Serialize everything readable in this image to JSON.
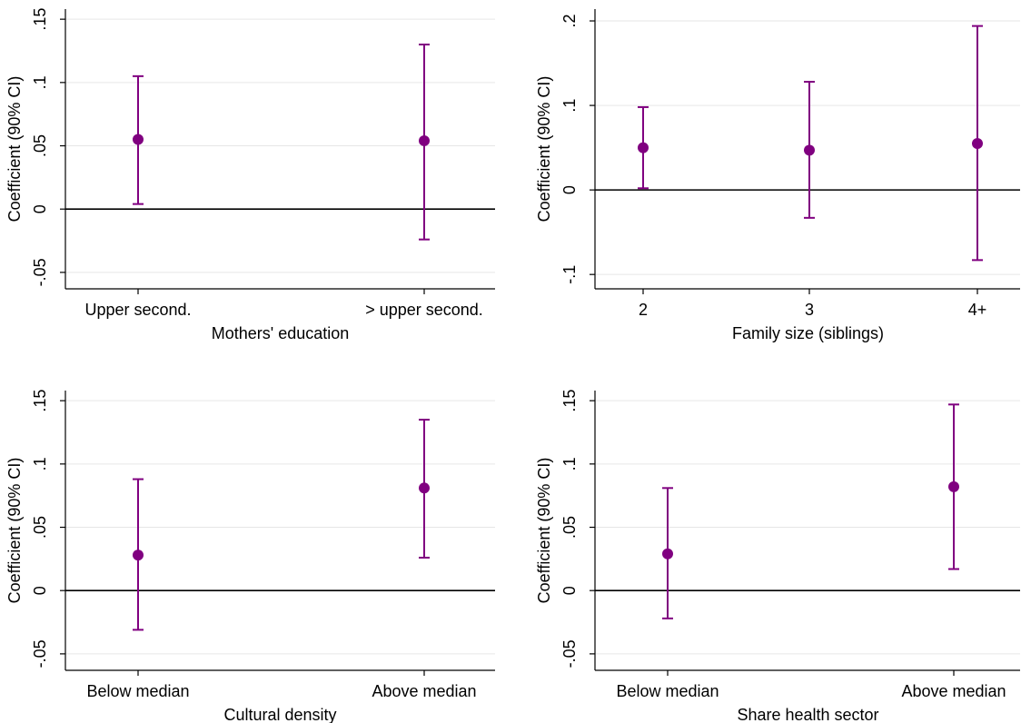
{
  "colors": {
    "marker": "#800080",
    "grid": "#e6e6e6",
    "axis": "#000000",
    "zero_line": "#000000"
  },
  "chart_data": [
    {
      "type": "scatter",
      "subtype": "coefficient plot with error bars",
      "ylabel": "Coefficient (90% CI)",
      "xlabel": "Mothers' education",
      "categories": [
        "Upper second.",
        "> upper second."
      ],
      "coef": [
        0.055,
        0.054
      ],
      "ci_low": [
        0.004,
        -0.024
      ],
      "ci_high": [
        0.105,
        0.13
      ],
      "yticks": [
        -0.05,
        0,
        0.05,
        0.1,
        0.15
      ],
      "ytick_labels": [
        "-.05",
        "0",
        ".05",
        ".1",
        ".15"
      ],
      "ylim": [
        -0.063,
        0.158
      ],
      "zero_line": true,
      "grid": true
    },
    {
      "type": "scatter",
      "subtype": "coefficient plot with error bars",
      "ylabel": "Coefficient (90% CI)",
      "xlabel": "Family size (siblings)",
      "categories": [
        "2",
        "3",
        "4+"
      ],
      "coef": [
        0.05,
        0.047,
        0.055
      ],
      "ci_low": [
        0.002,
        -0.033,
        -0.083
      ],
      "ci_high": [
        0.098,
        0.128,
        0.194
      ],
      "yticks": [
        -0.1,
        0,
        0.1,
        0.2
      ],
      "ytick_labels": [
        "-.1",
        "0",
        ".1",
        ".2"
      ],
      "ylim": [
        -0.117,
        0.214
      ],
      "zero_line": true,
      "grid": true
    },
    {
      "type": "scatter",
      "subtype": "coefficient plot with error bars",
      "ylabel": "Coefficient (90% CI)",
      "xlabel": "Cultural density",
      "categories": [
        "Below median",
        "Above median"
      ],
      "coef": [
        0.028,
        0.081
      ],
      "ci_low": [
        -0.031,
        0.026
      ],
      "ci_high": [
        0.088,
        0.135
      ],
      "yticks": [
        -0.05,
        0,
        0.05,
        0.1,
        0.15
      ],
      "ytick_labels": [
        "-.05",
        "0",
        ".05",
        ".1",
        ".15"
      ],
      "ylim": [
        -0.063,
        0.158
      ],
      "zero_line": true,
      "grid": true
    },
    {
      "type": "scatter",
      "subtype": "coefficient plot with error bars",
      "ylabel": "Coefficient (90% CI)",
      "xlabel": "Share health sector",
      "categories": [
        "Below median",
        "Above median"
      ],
      "coef": [
        0.029,
        0.082
      ],
      "ci_low": [
        -0.022,
        0.017
      ],
      "ci_high": [
        0.081,
        0.147
      ],
      "yticks": [
        -0.05,
        0,
        0.05,
        0.1,
        0.15
      ],
      "ytick_labels": [
        "-.05",
        "0",
        ".05",
        ".1",
        ".15"
      ],
      "ylim": [
        -0.063,
        0.158
      ],
      "zero_line": true,
      "grid": true
    }
  ]
}
